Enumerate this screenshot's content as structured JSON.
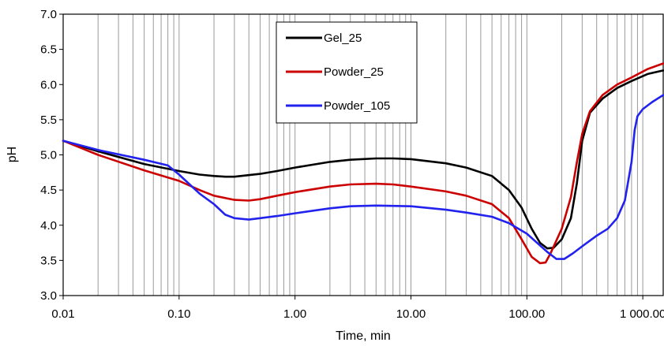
{
  "chart_data": {
    "type": "line",
    "title": "",
    "xlabel": "Time, min",
    "ylabel": "pH",
    "xscale": "log",
    "xlim": [
      0.01,
      1500
    ],
    "ylim": [
      3.0,
      7.0
    ],
    "grid": "vertical minor log lines",
    "legend_position": "top-center",
    "x_ticks": [
      {
        "value": 0.01,
        "label": "0.01"
      },
      {
        "value": 0.1,
        "label": "0.10"
      },
      {
        "value": 1,
        "label": "1.00"
      },
      {
        "value": 10,
        "label": "10.00"
      },
      {
        "value": 100,
        "label": "100.00"
      },
      {
        "value": 1000,
        "label": "1 000.00"
      }
    ],
    "y_ticks": [
      {
        "value": 3.0,
        "label": "3.0"
      },
      {
        "value": 3.5,
        "label": "3.5"
      },
      {
        "value": 4.0,
        "label": "4.0"
      },
      {
        "value": 4.5,
        "label": "4.5"
      },
      {
        "value": 5.0,
        "label": "5.0"
      },
      {
        "value": 5.5,
        "label": "5.5"
      },
      {
        "value": 6.0,
        "label": "6.0"
      },
      {
        "value": 6.5,
        "label": "6.5"
      },
      {
        "value": 7.0,
        "label": "7.0"
      }
    ],
    "series": [
      {
        "name": "Gel_25",
        "color": "#000000",
        "points": [
          [
            0.01,
            5.2
          ],
          [
            0.02,
            5.05
          ],
          [
            0.05,
            4.87
          ],
          [
            0.1,
            4.77
          ],
          [
            0.15,
            4.72
          ],
          [
            0.2,
            4.7
          ],
          [
            0.25,
            4.69
          ],
          [
            0.3,
            4.69
          ],
          [
            0.5,
            4.73
          ],
          [
            0.7,
            4.77
          ],
          [
            1,
            4.82
          ],
          [
            2,
            4.9
          ],
          [
            3,
            4.93
          ],
          [
            5,
            4.95
          ],
          [
            7,
            4.95
          ],
          [
            10,
            4.94
          ],
          [
            20,
            4.88
          ],
          [
            30,
            4.82
          ],
          [
            50,
            4.7
          ],
          [
            70,
            4.5
          ],
          [
            90,
            4.25
          ],
          [
            110,
            3.95
          ],
          [
            130,
            3.75
          ],
          [
            150,
            3.67
          ],
          [
            170,
            3.68
          ],
          [
            200,
            3.8
          ],
          [
            240,
            4.1
          ],
          [
            270,
            4.6
          ],
          [
            300,
            5.2
          ],
          [
            350,
            5.6
          ],
          [
            450,
            5.8
          ],
          [
            600,
            5.95
          ],
          [
            800,
            6.05
          ],
          [
            1100,
            6.15
          ],
          [
            1500,
            6.2
          ]
        ]
      },
      {
        "name": "Powder_25",
        "color": "#cc0000",
        "points": [
          [
            0.01,
            5.2
          ],
          [
            0.02,
            5.0
          ],
          [
            0.05,
            4.78
          ],
          [
            0.1,
            4.63
          ],
          [
            0.15,
            4.5
          ],
          [
            0.2,
            4.42
          ],
          [
            0.3,
            4.36
          ],
          [
            0.4,
            4.35
          ],
          [
            0.5,
            4.37
          ],
          [
            0.7,
            4.42
          ],
          [
            1,
            4.47
          ],
          [
            2,
            4.55
          ],
          [
            3,
            4.58
          ],
          [
            5,
            4.59
          ],
          [
            7,
            4.58
          ],
          [
            10,
            4.55
          ],
          [
            20,
            4.48
          ],
          [
            30,
            4.42
          ],
          [
            50,
            4.3
          ],
          [
            70,
            4.1
          ],
          [
            90,
            3.8
          ],
          [
            110,
            3.55
          ],
          [
            130,
            3.46
          ],
          [
            145,
            3.47
          ],
          [
            160,
            3.6
          ],
          [
            200,
            3.95
          ],
          [
            240,
            4.4
          ],
          [
            270,
            4.9
          ],
          [
            300,
            5.3
          ],
          [
            350,
            5.62
          ],
          [
            450,
            5.85
          ],
          [
            600,
            6.0
          ],
          [
            800,
            6.1
          ],
          [
            1100,
            6.22
          ],
          [
            1500,
            6.3
          ]
        ]
      },
      {
        "name": "Powder_105",
        "color": "#2222ee",
        "points": [
          [
            0.01,
            5.2
          ],
          [
            0.02,
            5.07
          ],
          [
            0.05,
            4.93
          ],
          [
            0.08,
            4.85
          ],
          [
            0.1,
            4.72
          ],
          [
            0.15,
            4.45
          ],
          [
            0.2,
            4.3
          ],
          [
            0.25,
            4.15
          ],
          [
            0.3,
            4.1
          ],
          [
            0.4,
            4.08
          ],
          [
            0.5,
            4.1
          ],
          [
            0.7,
            4.13
          ],
          [
            1,
            4.17
          ],
          [
            2,
            4.24
          ],
          [
            3,
            4.27
          ],
          [
            5,
            4.28
          ],
          [
            10,
            4.27
          ],
          [
            20,
            4.22
          ],
          [
            30,
            4.18
          ],
          [
            50,
            4.12
          ],
          [
            70,
            4.03
          ],
          [
            100,
            3.88
          ],
          [
            150,
            3.62
          ],
          [
            180,
            3.52
          ],
          [
            210,
            3.52
          ],
          [
            250,
            3.6
          ],
          [
            300,
            3.7
          ],
          [
            400,
            3.85
          ],
          [
            500,
            3.95
          ],
          [
            600,
            4.1
          ],
          [
            700,
            4.35
          ],
          [
            800,
            4.9
          ],
          [
            850,
            5.35
          ],
          [
            900,
            5.55
          ],
          [
            1000,
            5.65
          ],
          [
            1200,
            5.75
          ],
          [
            1500,
            5.85
          ]
        ]
      }
    ]
  }
}
